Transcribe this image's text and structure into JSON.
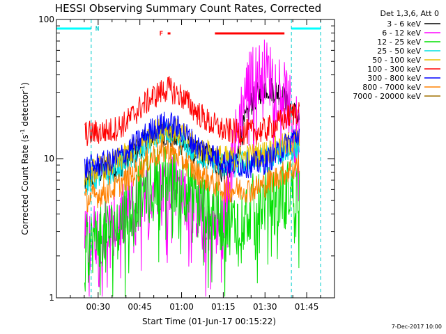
{
  "chart_data": {
    "type": "line",
    "title": "HESSI Observing Summary Count Rates, Corrected",
    "xlabel": "Start Time (01-Jun-17 00:15:22)",
    "ylabel": "Corrected Count Rate (s^-1 detector^-1)",
    "ylabel_main": "Corrected Count Rate (s",
    "ylabel_sup1": "-1",
    "ylabel_mid": " detector",
    "ylabel_sup2": "-1",
    "ylabel_end": ")",
    "yscale": "log",
    "ylim": [
      1,
      100
    ],
    "xlim_minutes": [
      0,
      100
    ],
    "x_tick_labels": [
      "00:30",
      "00:45",
      "01:00",
      "01:15",
      "01:30",
      "01:45"
    ],
    "x_tick_minutes": [
      15,
      30,
      45,
      60,
      75,
      90
    ],
    "y_tick_labels": [
      "1",
      "10",
      "100"
    ],
    "y_tick_values": [
      1,
      10,
      100
    ],
    "legend_title": "Det 1,3,6, Att 0",
    "legend_placement": "outside-right",
    "date_stamp": "7-Dec-2017 10:00",
    "flags": {
      "night_label": "N",
      "flare_label": "F"
    },
    "night_minutes": [
      [
        0,
        12.5
      ],
      [
        84.5,
        95
      ]
    ],
    "flare_minutes": [
      [
        40,
        41
      ],
      [
        57,
        82
      ]
    ],
    "x": [
      0,
      5,
      10,
      15,
      20,
      25,
      30,
      35,
      40,
      45,
      50,
      55,
      60,
      65,
      70,
      75,
      80,
      85,
      90
    ],
    "series": [
      {
        "name": "3 - 6 keV",
        "color": "#000000",
        "values": [
          null,
          null,
          6.5,
          8,
          8.5,
          9.5,
          12,
          15,
          15,
          13,
          11,
          10.5,
          8,
          10,
          25,
          33,
          30,
          22,
          16
        ]
      },
      {
        "name": "6 - 12 keV",
        "color": "#ff00ff",
        "values": [
          null,
          null,
          2.5,
          3,
          3.2,
          4,
          5,
          6.5,
          7,
          6,
          4.5,
          3.5,
          3.2,
          15,
          38,
          43,
          35,
          20,
          8
        ]
      },
      {
        "name": "12 - 25 keV",
        "color": "#00e000",
        "values": [
          null,
          null,
          2.2,
          2.8,
          3,
          4,
          5.5,
          7,
          7.5,
          6.5,
          5,
          4.5,
          3.5,
          3.5,
          4.5,
          5,
          5.5,
          6,
          7
        ]
      },
      {
        "name": "25 - 50 keV",
        "color": "#00e0e0",
        "values": [
          null,
          null,
          6.5,
          7.5,
          8,
          9.5,
          11,
          14,
          15,
          13,
          10.5,
          10,
          9,
          9,
          9.5,
          10,
          11,
          11.5,
          13
        ]
      },
      {
        "name": "50 - 100 keV",
        "color": "#e8c000",
        "values": [
          null,
          null,
          7.5,
          8.5,
          9,
          10.5,
          12.5,
          15.5,
          17,
          15,
          12,
          11,
          10,
          10,
          10.5,
          11,
          12,
          13,
          15
        ]
      },
      {
        "name": "100 - 300 keV",
        "color": "#ff0000",
        "values": [
          null,
          null,
          15,
          15.5,
          16,
          18,
          23,
          28,
          32,
          28,
          22,
          18,
          16,
          15.5,
          15.5,
          16,
          18,
          21,
          24
        ]
      },
      {
        "name": "300 - 800 keV",
        "color": "#0000ff",
        "values": [
          null,
          null,
          8.5,
          9,
          9.5,
          11,
          13.5,
          16.5,
          18,
          16,
          12.5,
          11,
          9.5,
          9,
          9,
          9.5,
          11,
          14,
          16.5
        ]
      },
      {
        "name": "800 - 7000 keV",
        "color": "#ff8000",
        "values": [
          null,
          null,
          5,
          5.5,
          6,
          7,
          8.5,
          10.5,
          11.5,
          10,
          8,
          7,
          6,
          6,
          6,
          6.5,
          7.5,
          8.5,
          9.5
        ]
      },
      {
        "name": "7000 - 20000 keV",
        "color": "#a07000",
        "values": [
          null,
          null,
          null,
          null,
          null,
          null,
          null,
          null,
          null,
          null,
          null,
          null,
          null,
          null,
          null,
          null,
          null,
          null,
          null
        ]
      }
    ]
  }
}
